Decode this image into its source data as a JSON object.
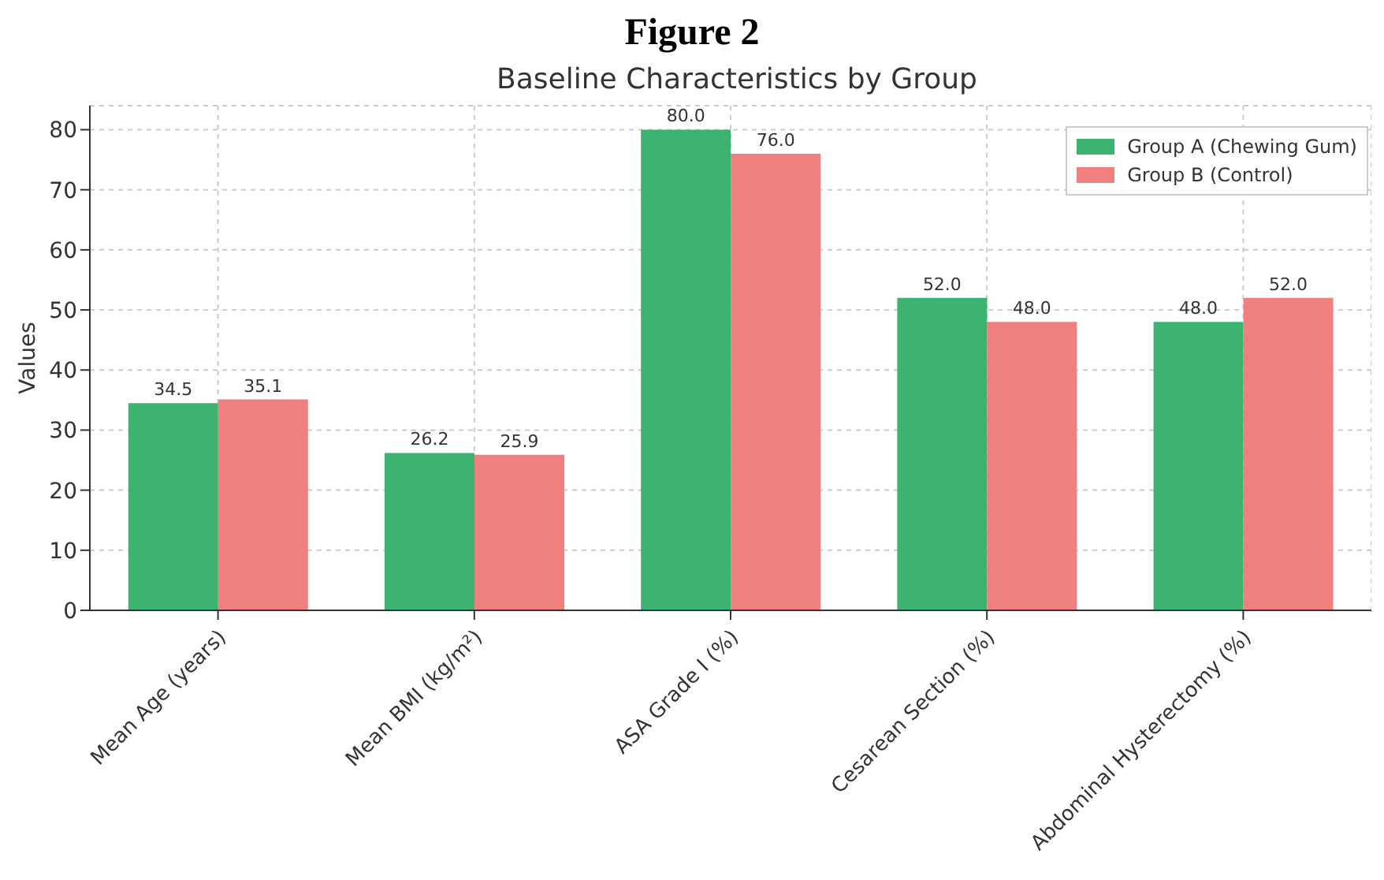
{
  "chart_data": {
    "type": "bar",
    "title": "Figure 2",
    "subtitle": "Baseline Characteristics by Group",
    "ylabel": "Values",
    "categories": [
      "Mean Age (years)",
      "Mean BMI (kg/m²)",
      "ASA Grade I (%)",
      "Cesarean Section (%)",
      "Abdominal Hysterectomy (%)"
    ],
    "series": [
      {
        "name": "Group A (Chewing Gum)",
        "color": "#3cb371",
        "values": [
          34.5,
          26.2,
          80.0,
          52.0,
          48.0
        ],
        "value_labels": [
          "34.5",
          "26.2",
          "80.0",
          "52.0",
          "48.0"
        ]
      },
      {
        "name": "Group B (Control)",
        "color": "#f08080",
        "values": [
          35.1,
          25.9,
          76.0,
          48.0,
          52.0
        ],
        "value_labels": [
          "35.1",
          "25.9",
          "76.0",
          "48.0",
          "52.0"
        ]
      }
    ],
    "ylim": [
      0,
      84
    ],
    "yticks": [
      0,
      10,
      20,
      30,
      40,
      50,
      60,
      70,
      80
    ],
    "grid": true,
    "legend": "top right"
  }
}
